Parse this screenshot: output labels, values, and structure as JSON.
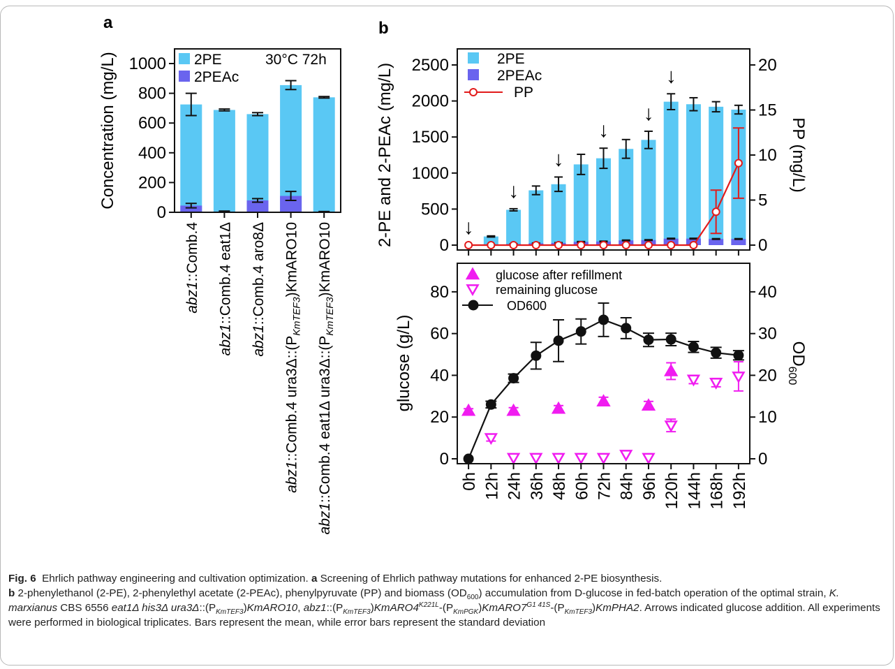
{
  "chart_data": [
    {
      "panel": "a",
      "type": "bar",
      "stacked": true,
      "annotation": "30°C 72h",
      "ylabel": "Concentration (mg/L)",
      "ylim": [
        0,
        1000
      ],
      "yticks": [
        0,
        200,
        400,
        600,
        800,
        1000
      ],
      "legend_position": "top-left",
      "categories": [
        {
          "italic": "abz1",
          "rest": "::Comb.4"
        },
        {
          "italic": "abz1",
          "rest": "::Comb.4 eat1Δ"
        },
        {
          "italic": "abz1",
          "rest": "::Comb.4 aro8Δ"
        },
        {
          "italic": "abz1",
          "rest": "::Comb.4 ura3Δ::(P",
          "sub": "KmTEF3",
          "tail": ")KmARO10"
        },
        {
          "italic": "abz1",
          "rest": "::Comb.4 eat1Δ ura3Δ::(P",
          "sub": "KmTEF3",
          "tail": ")KmARO10"
        }
      ],
      "series": [
        {
          "name": "2PE",
          "color": "#5ac8f4",
          "values": [
            725,
            688,
            660,
            855,
            773
          ],
          "errors": [
            75,
            6,
            10,
            30,
            5
          ]
        },
        {
          "name": "2PEAc",
          "color": "#6a64ee",
          "values": [
            45,
            5,
            80,
            110,
            3
          ],
          "errors": [
            15,
            3,
            12,
            30,
            2
          ]
        }
      ]
    },
    {
      "panel": "b-top",
      "type": "bar",
      "stacked": true,
      "ylabel": "2-PE and 2-PEAc (mg/L)",
      "ylabel_right": "PP (mg/L)",
      "ylim": [
        0,
        2500
      ],
      "ylim_right": [
        0,
        20
      ],
      "yticks": [
        0,
        500,
        1000,
        1500,
        2000,
        2500
      ],
      "yticks_right": [
        0,
        5,
        10,
        15,
        20
      ],
      "legend_position": "top-left",
      "categories": [
        "0h",
        "12h",
        "24h",
        "36h",
        "48h",
        "60h",
        "72h",
        "84h",
        "96h",
        "120h",
        "144h",
        "168h",
        "192h"
      ],
      "series": [
        {
          "name": "2PE",
          "color": "#5ac8f4",
          "values": [
            0,
            120,
            490,
            760,
            845,
            1120,
            1205,
            1335,
            1460,
            1990,
            1955,
            1920,
            1880
          ],
          "errors": [
            0,
            8,
            15,
            60,
            100,
            140,
            140,
            130,
            120,
            110,
            90,
            70,
            60
          ]
        },
        {
          "name": "2PEAc",
          "color": "#6a64ee",
          "values": [
            0,
            5,
            15,
            25,
            30,
            45,
            50,
            65,
            70,
            90,
            90,
            85,
            85
          ],
          "errors": [
            0,
            2,
            3,
            5,
            5,
            5,
            5,
            5,
            5,
            5,
            5,
            5,
            5
          ]
        },
        {
          "name": "PP",
          "type": "line",
          "color": "#e21b1b",
          "axis": "right",
          "values": [
            0,
            0,
            0,
            0,
            0,
            0,
            0,
            0,
            0,
            0,
            0,
            3.7,
            9.1
          ],
          "errors": [
            0,
            0,
            0,
            0,
            0,
            0,
            0,
            0,
            0,
            0,
            0,
            2.4,
            3.9
          ]
        }
      ],
      "annotations": [
        {
          "type": "arrow",
          "label": "↓",
          "at": [
            "0h",
            "24h",
            "48h",
            "72h",
            "96h",
            "120h"
          ]
        }
      ]
    },
    {
      "panel": "b-bottom",
      "type": "scatter",
      "ylabel": "glucose (g/L)",
      "ylabel_right_main": "OD",
      "ylabel_right_sub": "600",
      "ylim": [
        0,
        90
      ],
      "ylim_right": [
        0,
        45
      ],
      "yticks": [
        0,
        20,
        40,
        60,
        80
      ],
      "yticks_right": [
        0,
        10,
        20,
        30,
        40
      ],
      "legend_position": "top-left",
      "x": [
        "0h",
        "12h",
        "24h",
        "36h",
        "48h",
        "60h",
        "72h",
        "84h",
        "96h",
        "120h",
        "144h",
        "168h",
        "192h"
      ],
      "series": [
        {
          "name": "glucose after refillment",
          "marker": "triangle-up-filled",
          "color": "#f01cf0",
          "points": [
            [
              "0h",
              23
            ],
            [
              "24h",
              23
            ],
            [
              "48h",
              24
            ],
            [
              "72h",
              27.5
            ],
            [
              "96h",
              25.5
            ],
            [
              "120h",
              42
            ]
          ],
          "errors": [
            1,
            1.5,
            1.5,
            2,
            2,
            4
          ]
        },
        {
          "name": "remaining glucose",
          "marker": "triangle-down-open",
          "color": "#f01cf0",
          "points": [
            [
              "12h",
              10
            ],
            [
              "24h",
              0.5
            ],
            [
              "36h",
              0.5
            ],
            [
              "48h",
              0.5
            ],
            [
              "60h",
              0.5
            ],
            [
              "72h",
              0.5
            ],
            [
              "84h",
              2
            ],
            [
              "96h",
              0.5
            ],
            [
              "120h",
              16
            ],
            [
              "144h",
              38
            ],
            [
              "168h",
              36.5
            ],
            [
              "192h",
              39.5
            ]
          ],
          "errors": [
            1.5,
            0,
            0,
            0,
            0,
            0,
            0,
            0,
            3,
            2,
            2,
            7
          ]
        },
        {
          "name": "OD600",
          "marker": "circle-filled",
          "line": true,
          "color": "#111111",
          "axis": "right",
          "points": [
            [
              "0h",
              0
            ],
            [
              "12h",
              13
            ],
            [
              "24h",
              19.3
            ],
            [
              "36h",
              24.7
            ],
            [
              "48h",
              28.3
            ],
            [
              "60h",
              30.5
            ],
            [
              "72h",
              33.3
            ],
            [
              "84h",
              31.3
            ],
            [
              "96h",
              28.5
            ],
            [
              "120h",
              28.6
            ],
            [
              "144h",
              26.8
            ],
            [
              "168h",
              25.4
            ],
            [
              "192h",
              24.8
            ]
          ],
          "errors": [
            0,
            0.8,
            1,
            3.2,
            5,
            3,
            4,
            2.5,
            1.6,
            1.5,
            1.3,
            1.3,
            1.1
          ]
        }
      ]
    }
  ],
  "panel_labels": {
    "a": "a",
    "b": "b"
  },
  "caption": {
    "fig_label": "Fig. 6",
    "title": "Ehrlich pathway engineering and cultivation optimization.",
    "a_label": "a",
    "a_text": "Screening of Ehrlich pathway mutations for enhanced 2-PE biosynthesis.",
    "b_label": "b",
    "b_text_1": "2-phenylethanol (2-PE), 2-phenylethyl acetate (2-PEAc), phenylpyruvate (PP) and biomass (OD",
    "b_sub_1": "600",
    "b_text_2": ") accumulation from",
    "b_glucose_prefix": "D",
    "b_text_3": "-glucose in fed-batch operation of the optimal strain,",
    "b_species": "K. marxianus",
    "b_text_4": "CBS 6556",
    "b_genotype_1": "eat1Δ his3Δ ura3Δ",
    "b_text_5": "::(P",
    "b_sub_2": "KmTEF3",
    "b_text_6": ")",
    "b_gene_1": "KmARO10",
    "b_text_7": ",",
    "b_genotype_2": "abz1",
    "b_text_8": "::(P",
    "b_sub_3": "KmTEF3",
    "b_text_9": ")",
    "b_gene_2": "KmARO4",
    "b_sup_1": "K221L",
    "b_text_10": "-(P",
    "b_sub_4": "KmPGK",
    "b_text_11": ")",
    "b_gene_3": "KmARO7",
    "b_sup_2": "G1 41S",
    "b_text_12": "-(P",
    "b_sub_5": "KmTEF3",
    "b_text_13": ")",
    "b_gene_4": "KmPHA2",
    "b_text_14": ". Arrows indicated glucose addition. All experiments were performed in biological triplicates. Bars represent the mean, while error bars represent the standard deviation"
  }
}
